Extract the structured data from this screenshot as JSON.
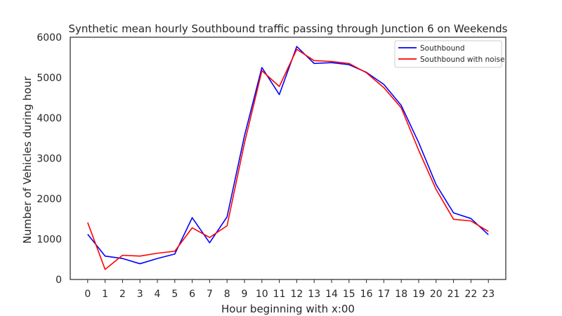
{
  "chart_data": {
    "type": "line",
    "title": "Synthetic mean hourly Southbound traffic passing through Junction 6 on Weekends",
    "xlabel": "Hour beginning with x:00",
    "ylabel": "Number of Vehicles during hour",
    "x": [
      0,
      1,
      2,
      3,
      4,
      5,
      6,
      7,
      8,
      9,
      10,
      11,
      12,
      13,
      14,
      15,
      16,
      17,
      18,
      19,
      20,
      21,
      22,
      23
    ],
    "xticks": [
      "0",
      "1",
      "2",
      "3",
      "4",
      "5",
      "6",
      "7",
      "8",
      "9",
      "10",
      "11",
      "12",
      "13",
      "14",
      "15",
      "16",
      "17",
      "18",
      "19",
      "20",
      "21",
      "22",
      "23"
    ],
    "yticks": [
      0,
      1000,
      2000,
      3000,
      4000,
      5000,
      6000
    ],
    "ylim": [
      0,
      6000
    ],
    "xlim": [
      -1,
      24
    ],
    "grid": false,
    "legend_position": "top-right",
    "series": [
      {
        "name": "Southbound",
        "color": "#0000ff",
        "values": [
          1120,
          580,
          520,
          390,
          520,
          630,
          1530,
          910,
          1550,
          3560,
          5250,
          4580,
          5770,
          5350,
          5370,
          5320,
          5130,
          4830,
          4310,
          3390,
          2350,
          1650,
          1510,
          1110
        ]
      },
      {
        "name": "Southbound with noise",
        "color": "#ff0000",
        "values": [
          1410,
          250,
          600,
          580,
          650,
          700,
          1280,
          1040,
          1330,
          3380,
          5170,
          4780,
          5700,
          5420,
          5400,
          5350,
          5120,
          4750,
          4250,
          3200,
          2230,
          1490,
          1450,
          1190
        ]
      }
    ]
  }
}
